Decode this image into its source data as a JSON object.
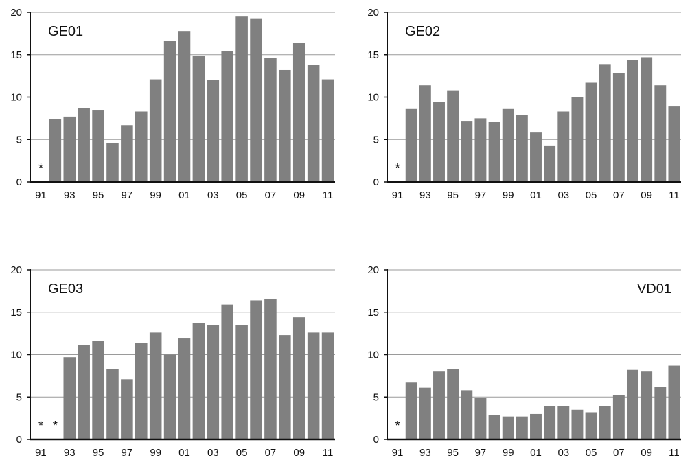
{
  "colors": {
    "bar": "#808080",
    "grid": "#9a9a9a",
    "axis": "#111111",
    "text": "#111111"
  },
  "chart_data": [
    {
      "type": "bar",
      "title": "GE01",
      "title_align": "left",
      "categories": [
        "91",
        "92",
        "93",
        "94",
        "95",
        "96",
        "97",
        "98",
        "99",
        "00",
        "01",
        "02",
        "03",
        "04",
        "05",
        "06",
        "07",
        "08",
        "09",
        "10",
        "11"
      ],
      "x_tick_labels": [
        "91",
        "93",
        "95",
        "97",
        "99",
        "01",
        "03",
        "05",
        "07",
        "09",
        "11"
      ],
      "values": [
        null,
        7.4,
        7.7,
        8.7,
        8.5,
        4.6,
        6.7,
        8.3,
        12.1,
        16.6,
        17.8,
        14.9,
        12.0,
        15.4,
        19.5,
        19.3,
        14.6,
        13.2,
        16.4,
        13.8,
        12.1
      ],
      "missing_markers": [
        "91"
      ],
      "missing_marker_symbol": "*",
      "ylim": [
        0,
        20
      ],
      "y_ticks": [
        0,
        5,
        10,
        15,
        20
      ],
      "grid": true,
      "xlabel": "",
      "ylabel": ""
    },
    {
      "type": "bar",
      "title": "GE02",
      "title_align": "left",
      "categories": [
        "91",
        "92",
        "93",
        "94",
        "95",
        "96",
        "97",
        "98",
        "99",
        "00",
        "01",
        "02",
        "03",
        "04",
        "05",
        "06",
        "07",
        "08",
        "09",
        "10",
        "11"
      ],
      "x_tick_labels": [
        "91",
        "93",
        "95",
        "97",
        "99",
        "01",
        "03",
        "05",
        "07",
        "09",
        "11"
      ],
      "values": [
        null,
        8.6,
        11.4,
        9.4,
        10.8,
        7.2,
        7.5,
        7.1,
        8.6,
        7.9,
        5.9,
        4.3,
        8.3,
        10.0,
        11.7,
        13.9,
        12.8,
        14.4,
        14.7,
        11.4,
        8.9
      ],
      "missing_markers": [
        "91"
      ],
      "missing_marker_symbol": "*",
      "ylim": [
        0,
        20
      ],
      "y_ticks": [
        0,
        5,
        10,
        15,
        20
      ],
      "grid": true,
      "xlabel": "",
      "ylabel": ""
    },
    {
      "type": "bar",
      "title": "GE03",
      "title_align": "left",
      "categories": [
        "91",
        "92",
        "93",
        "94",
        "95",
        "96",
        "97",
        "98",
        "99",
        "00",
        "01",
        "02",
        "03",
        "04",
        "05",
        "06",
        "07",
        "08",
        "09",
        "10",
        "11"
      ],
      "x_tick_labels": [
        "91",
        "93",
        "95",
        "97",
        "99",
        "01",
        "03",
        "05",
        "07",
        "09",
        "11"
      ],
      "values": [
        null,
        null,
        9.7,
        11.1,
        11.6,
        8.3,
        7.1,
        11.4,
        12.6,
        10.0,
        11.9,
        13.7,
        13.5,
        15.9,
        13.5,
        16.4,
        16.6,
        12.3,
        14.4,
        12.6,
        12.6
      ],
      "missing_markers": [
        "91",
        "92"
      ],
      "missing_marker_symbol": "*",
      "ylim": [
        0,
        20
      ],
      "y_ticks": [
        0,
        5,
        10,
        15,
        20
      ],
      "grid": true,
      "xlabel": "",
      "ylabel": ""
    },
    {
      "type": "bar",
      "title": "VD01",
      "title_align": "right",
      "categories": [
        "91",
        "92",
        "93",
        "94",
        "95",
        "96",
        "97",
        "98",
        "99",
        "00",
        "01",
        "02",
        "03",
        "04",
        "05",
        "06",
        "07",
        "08",
        "09",
        "10",
        "11"
      ],
      "x_tick_labels": [
        "91",
        "93",
        "95",
        "97",
        "99",
        "01",
        "03",
        "05",
        "07",
        "09",
        "11"
      ],
      "values": [
        null,
        6.7,
        6.1,
        8.0,
        8.3,
        5.8,
        4.9,
        2.9,
        2.7,
        2.7,
        3.0,
        3.9,
        3.9,
        3.5,
        3.2,
        3.9,
        5.2,
        8.2,
        8.0,
        6.2,
        8.7
      ],
      "missing_markers": [
        "91"
      ],
      "missing_marker_symbol": "*",
      "ylim": [
        0,
        20
      ],
      "y_ticks": [
        0,
        5,
        10,
        15,
        20
      ],
      "grid": true,
      "xlabel": "",
      "ylabel": ""
    }
  ]
}
